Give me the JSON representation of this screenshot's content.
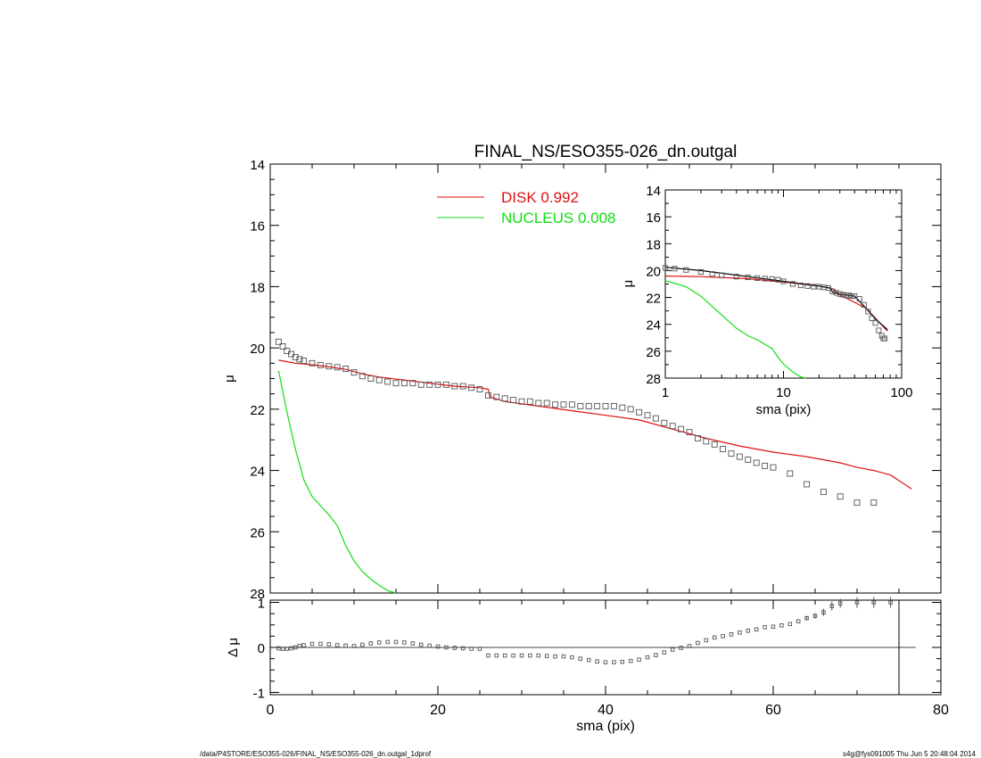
{
  "footer": {
    "path": "/data/P4STORE/ESO355-026/FINAL_NS/ESO355-026_dn.outgal_1dprof",
    "stamp": "s4g@fys091005  Thu Jun  5 20:48:04 2014"
  },
  "colors": {
    "disk": "#e01010",
    "nucleus": "#10e010",
    "data": "#000000"
  },
  "chart_data": [
    {
      "id": "main",
      "type": "scatter",
      "title": "FINAL_NS/ESO355-026_dn.outgal",
      "xlabel": "",
      "ylabel": "μ",
      "xlim": [
        0,
        80
      ],
      "ylim": [
        28,
        14
      ],
      "y_inverted": true,
      "xticks": [
        0,
        20,
        40,
        60,
        80
      ],
      "yticks": [
        14,
        16,
        18,
        20,
        22,
        24,
        26,
        28
      ],
      "legend_position": "top-center",
      "legend": [
        {
          "label": "DISK  0.992",
          "color": "#e01010"
        },
        {
          "label": "NUCLEUS  0.008",
          "color": "#10e010"
        }
      ],
      "series": [
        {
          "name": "DISK  0.992",
          "kind": "line",
          "color": "#e01010",
          "x": [
            1,
            2,
            3,
            5,
            7,
            9,
            11,
            13,
            16,
            19,
            22,
            25,
            26,
            26.2,
            28,
            32,
            36,
            40,
            44,
            48,
            52,
            56,
            60,
            64,
            68,
            70,
            72,
            74,
            76.5
          ],
          "y": [
            20.4,
            20.45,
            20.5,
            20.55,
            20.62,
            20.7,
            20.85,
            20.95,
            21.05,
            21.15,
            21.25,
            21.3,
            21.35,
            21.6,
            21.75,
            21.9,
            22.05,
            22.2,
            22.35,
            22.65,
            22.95,
            23.2,
            23.4,
            23.55,
            23.75,
            23.9,
            24.0,
            24.15,
            24.6
          ]
        },
        {
          "name": "NUCLEUS  0.008",
          "kind": "line",
          "color": "#10e010",
          "x": [
            1,
            2,
            3,
            4,
            5,
            6,
            7,
            8,
            9,
            10,
            11,
            12,
            13,
            14,
            15
          ],
          "y": [
            20.75,
            22.1,
            23.3,
            24.3,
            24.85,
            25.15,
            25.45,
            25.8,
            26.45,
            26.95,
            27.3,
            27.55,
            27.75,
            27.92,
            28.05
          ]
        },
        {
          "name": "",
          "kind": "markers",
          "color": "#000000",
          "x": [
            1,
            1.5,
            2,
            2.5,
            3,
            3.5,
            4,
            5,
            6,
            7,
            8,
            9,
            10,
            11,
            12,
            13,
            14,
            15,
            16,
            17,
            18,
            19,
            20,
            21,
            22,
            23,
            24,
            25,
            26,
            27,
            28,
            29,
            30,
            31,
            32,
            33,
            34,
            35,
            36,
            37,
            38,
            39,
            40,
            41,
            42,
            43,
            44,
            45,
            46,
            47,
            48,
            49,
            50,
            51,
            52,
            53,
            54,
            55,
            56,
            57,
            58,
            59,
            60,
            62,
            64,
            66,
            68,
            70,
            72
          ],
          "y": [
            19.8,
            19.95,
            20.1,
            20.2,
            20.3,
            20.37,
            20.42,
            20.5,
            20.56,
            20.6,
            20.63,
            20.68,
            20.8,
            20.92,
            21.0,
            21.05,
            21.1,
            21.15,
            21.15,
            21.15,
            21.2,
            21.2,
            21.2,
            21.2,
            21.25,
            21.25,
            21.3,
            21.35,
            21.55,
            21.6,
            21.65,
            21.7,
            21.75,
            21.75,
            21.8,
            21.8,
            21.85,
            21.85,
            21.85,
            21.9,
            21.9,
            21.9,
            21.9,
            21.9,
            21.95,
            22.0,
            22.1,
            22.2,
            22.3,
            22.45,
            22.55,
            22.65,
            22.75,
            22.95,
            23.05,
            23.15,
            23.3,
            23.45,
            23.55,
            23.65,
            23.75,
            23.85,
            23.9,
            24.1,
            24.45,
            24.7,
            24.85,
            25.05,
            25.05
          ]
        }
      ]
    },
    {
      "id": "inset",
      "type": "scatter",
      "title": "",
      "xlabel": "sma (pix)",
      "ylabel": "μ",
      "xscale": "log",
      "xlim": [
        1,
        100
      ],
      "ylim": [
        28,
        14
      ],
      "y_inverted": true,
      "xticks": [
        1,
        10,
        100
      ],
      "yticks": [
        14,
        16,
        18,
        20,
        22,
        24,
        26,
        28
      ],
      "series": [
        {
          "name": "",
          "kind": "line",
          "color": "#e01010",
          "x": [
            1,
            2,
            5,
            10,
            20,
            26,
            30,
            50,
            76
          ],
          "y": [
            20.4,
            20.45,
            20.6,
            20.85,
            21.15,
            21.35,
            21.8,
            22.8,
            24.5
          ]
        },
        {
          "name": "",
          "kind": "line",
          "color": "#10e010",
          "x": [
            1,
            1.5,
            2,
            3,
            4,
            5,
            6,
            8,
            9,
            10,
            12,
            14,
            15.5
          ],
          "y": [
            20.75,
            21.2,
            21.9,
            23.3,
            24.3,
            24.85,
            25.15,
            25.8,
            26.45,
            26.95,
            27.55,
            27.92,
            28.1
          ]
        },
        {
          "name": "",
          "kind": "line",
          "color": "#000000",
          "x": [
            1,
            2,
            5,
            10,
            20,
            25,
            26,
            30,
            40,
            50,
            60,
            76
          ],
          "y": [
            19.75,
            20.0,
            20.45,
            20.8,
            21.15,
            21.3,
            21.6,
            21.75,
            21.9,
            22.8,
            23.6,
            24.4
          ]
        },
        {
          "name": "",
          "kind": "markers",
          "color": "#000000",
          "x": [
            1,
            1.2,
            1.5,
            2,
            2.5,
            3,
            4,
            5,
            6,
            7,
            8,
            9,
            10,
            12,
            14,
            16,
            18,
            20,
            22,
            24,
            26,
            28,
            30,
            32,
            34,
            36,
            38,
            40,
            44,
            48,
            52,
            56,
            60,
            64,
            68,
            70,
            72
          ],
          "y": [
            19.8,
            19.85,
            19.95,
            20.1,
            20.25,
            20.35,
            20.45,
            20.5,
            20.56,
            20.6,
            20.63,
            20.68,
            20.8,
            21.0,
            21.1,
            21.15,
            21.2,
            21.2,
            21.25,
            21.3,
            21.55,
            21.65,
            21.75,
            21.8,
            21.85,
            21.85,
            21.9,
            21.9,
            22.1,
            22.55,
            23.05,
            23.55,
            23.9,
            24.45,
            24.85,
            25.05,
            25.05
          ]
        }
      ]
    },
    {
      "id": "residual",
      "type": "scatter",
      "title": "",
      "xlabel": "sma (pix)",
      "ylabel": "Δ μ",
      "xlim": [
        0,
        80
      ],
      "ylim": [
        -1.05,
        1.05
      ],
      "xticks": [
        0,
        20,
        40,
        60,
        80
      ],
      "yticks": [
        -1,
        0,
        1
      ],
      "reference_line": 0,
      "vertical_line": 75,
      "series": [
        {
          "name": "",
          "kind": "markers",
          "color": "#000000",
          "x": [
            1,
            1.5,
            2,
            2.5,
            3,
            3.5,
            4,
            5,
            6,
            7,
            8,
            9,
            10,
            11,
            12,
            13,
            14,
            15,
            16,
            17,
            18,
            19,
            20,
            21,
            22,
            23,
            24,
            25,
            26,
            27,
            28,
            29,
            30,
            31,
            32,
            33,
            34,
            35,
            36,
            37,
            38,
            39,
            40,
            41,
            42,
            43,
            44,
            45,
            46,
            47,
            48,
            49,
            50,
            51,
            52,
            53,
            54,
            55,
            56,
            57,
            58,
            59,
            60,
            61,
            62,
            63,
            64,
            65,
            66,
            67,
            68,
            70,
            72,
            74
          ],
          "y": [
            -0.02,
            -0.03,
            -0.03,
            -0.02,
            0.0,
            0.03,
            0.05,
            0.08,
            0.08,
            0.07,
            0.05,
            0.04,
            0.03,
            0.06,
            0.09,
            0.11,
            0.12,
            0.12,
            0.11,
            0.09,
            0.06,
            0.04,
            0.02,
            0.0,
            -0.01,
            -0.02,
            -0.03,
            -0.03,
            -0.18,
            -0.18,
            -0.18,
            -0.18,
            -0.18,
            -0.18,
            -0.18,
            -0.19,
            -0.2,
            -0.2,
            -0.22,
            -0.25,
            -0.28,
            -0.31,
            -0.33,
            -0.33,
            -0.32,
            -0.3,
            -0.27,
            -0.22,
            -0.17,
            -0.11,
            -0.05,
            -0.01,
            0.03,
            0.1,
            0.16,
            0.22,
            0.25,
            0.29,
            0.33,
            0.37,
            0.4,
            0.45,
            0.46,
            0.49,
            0.52,
            0.58,
            0.65,
            0.7,
            0.78,
            0.92,
            0.98,
            1.0,
            1.0,
            1.0
          ],
          "err": [
            0,
            0,
            0,
            0,
            0,
            0,
            0,
            0,
            0,
            0,
            0,
            0,
            0,
            0,
            0,
            0,
            0,
            0,
            0,
            0,
            0,
            0,
            0,
            0,
            0,
            0,
            0,
            0,
            0,
            0,
            0,
            0,
            0,
            0,
            0,
            0,
            0,
            0,
            0,
            0,
            0,
            0,
            0,
            0,
            0,
            0,
            0,
            0,
            0,
            0,
            0,
            0,
            0,
            0,
            0,
            0,
            0,
            0,
            0,
            0,
            0,
            0,
            0,
            0,
            0,
            0,
            0.05,
            0.06,
            0.08,
            0.1,
            0.1,
            0.12,
            0.12,
            0.12
          ]
        }
      ]
    }
  ]
}
